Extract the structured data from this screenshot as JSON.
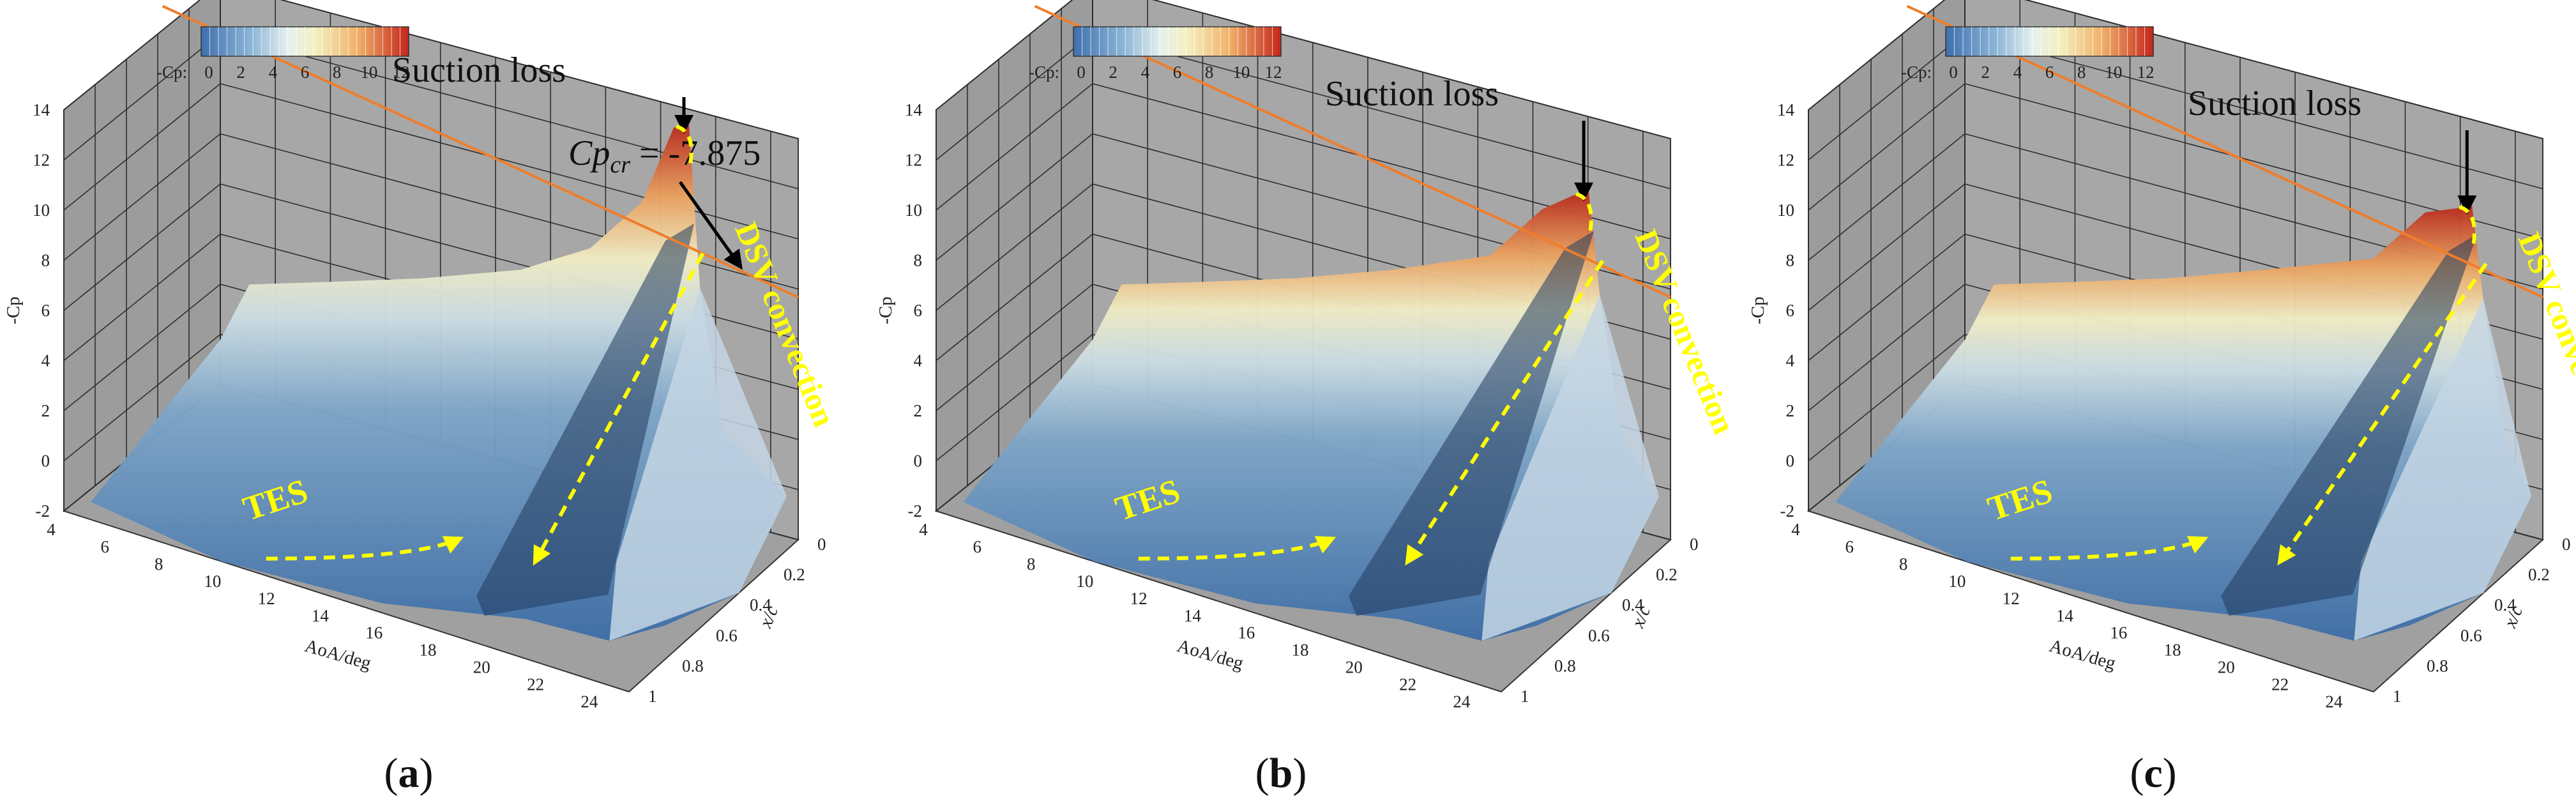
{
  "chart_data": [
    {
      "type": "surface3d",
      "panel_label": "a",
      "colorbar": {
        "label": "-Cp:",
        "ticks": [
          "0",
          "2",
          "4",
          "6",
          "8",
          "10",
          "12"
        ],
        "range": [
          0,
          12
        ]
      },
      "axes": {
        "x": {
          "label": "AoA/deg",
          "ticks": [
            "4",
            "6",
            "8",
            "10",
            "12",
            "14",
            "16",
            "18",
            "20",
            "22",
            "24"
          ],
          "range": [
            4,
            25
          ]
        },
        "y": {
          "label": "x/c",
          "ticks": [
            "0",
            "0.2",
            "0.4",
            "0.6",
            "0.8",
            "1"
          ],
          "range": [
            0,
            1
          ]
        },
        "z": {
          "label": "-Cp",
          "ticks": [
            "-2",
            "0",
            "2",
            "4",
            "6",
            "8",
            "10",
            "12",
            "14"
          ],
          "range": [
            -2,
            14
          ]
        }
      },
      "critical_line": {
        "label_prefix": "Cp",
        "label_sub": "cr",
        "label_value": " = -7.875",
        "value": 7.875
      },
      "annotations": {
        "suction_loss": "Suction loss",
        "tes": "TES",
        "dsv": "DSV convection"
      },
      "peak": {
        "aoa": 20.8,
        "minus_cp": 13.4
      }
    },
    {
      "type": "surface3d",
      "panel_label": "b",
      "colorbar": {
        "label": "-Cp:",
        "ticks": [
          "0",
          "2",
          "4",
          "6",
          "8",
          "10",
          "12"
        ],
        "range": [
          0,
          12
        ]
      },
      "axes": {
        "x": {
          "label": "AoA/deg",
          "ticks": [
            "4",
            "6",
            "8",
            "10",
            "12",
            "14",
            "16",
            "18",
            "20",
            "22",
            "24"
          ],
          "range": [
            4,
            25
          ]
        },
        "y": {
          "label": "x/c",
          "ticks": [
            "0",
            "0.2",
            "0.4",
            "0.6",
            "0.8",
            "1"
          ],
          "range": [
            0,
            1
          ]
        },
        "z": {
          "label": "-Cp",
          "ticks": [
            "-2",
            "0",
            "2",
            "4",
            "6",
            "8",
            "10",
            "12",
            "14"
          ],
          "range": [
            -2,
            14
          ]
        }
      },
      "critical_line": {
        "value": 7.875
      },
      "annotations": {
        "suction_loss": "Suction loss",
        "tes": "TES",
        "dsv": "DSV convection"
      },
      "peak": {
        "aoa": 21.8,
        "minus_cp": 11.0
      }
    },
    {
      "type": "surface3d",
      "panel_label": "c",
      "colorbar": {
        "label": "-Cp:",
        "ticks": [
          "0",
          "2",
          "4",
          "6",
          "8",
          "10",
          "12"
        ],
        "range": [
          0,
          12
        ]
      },
      "axes": {
        "x": {
          "label": "AoA/deg",
          "ticks": [
            "4",
            "6",
            "8",
            "10",
            "12",
            "14",
            "16",
            "18",
            "20",
            "22",
            "24"
          ],
          "range": [
            4,
            25
          ]
        },
        "y": {
          "label": "x/c",
          "ticks": [
            "0",
            "0.2",
            "0.4",
            "0.6",
            "0.8",
            "1"
          ],
          "range": [
            0,
            1
          ]
        },
        "z": {
          "label": "-Cp",
          "ticks": [
            "-2",
            "0",
            "2",
            "4",
            "6",
            "8",
            "10",
            "12",
            "14"
          ],
          "range": [
            -2,
            14
          ]
        }
      },
      "critical_line": {
        "value": 7.875
      },
      "annotations": {
        "suction_loss": "Suction loss",
        "tes": "TES",
        "dsv": "DSV convection"
      },
      "peak": {
        "aoa": 22.2,
        "minus_cp": 10.6
      }
    }
  ]
}
